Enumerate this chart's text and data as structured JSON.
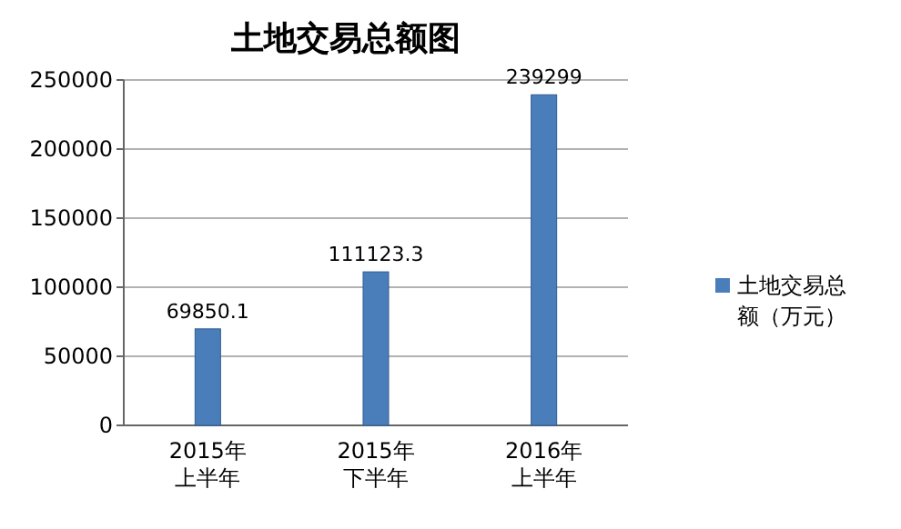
{
  "chart_data": {
    "type": "bar",
    "title": "土地交易总额图",
    "categories": [
      "2015年上半年",
      "2015年下半年",
      "2016年上半年"
    ],
    "series": [
      {
        "name": "土地交易总额（万元）",
        "color": "#4a7ebb",
        "values": [
          69850.1,
          111123.3,
          239299
        ]
      }
    ],
    "ylim": [
      0,
      250000
    ],
    "yticks": [
      0,
      50000,
      100000,
      150000,
      200000,
      250000
    ],
    "grid": "y",
    "legend": "right",
    "data_labels": true
  }
}
